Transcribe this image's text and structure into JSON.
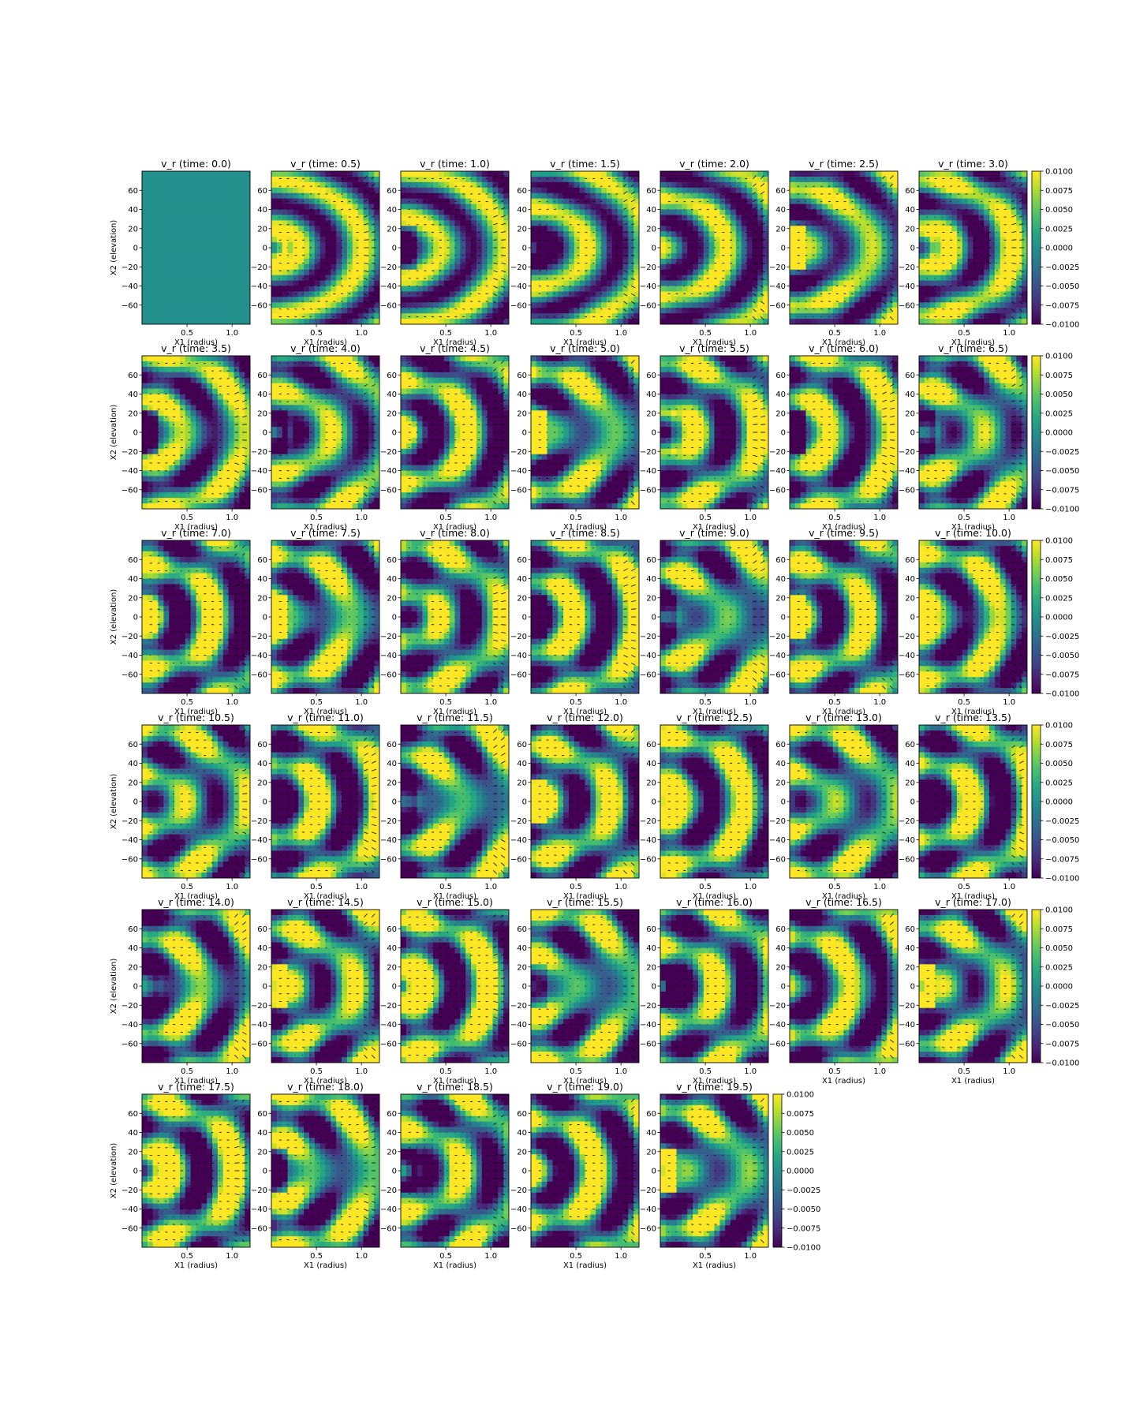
{
  "figure": {
    "colormap": "viridis",
    "colors": {
      "viridis_low": "#440154",
      "viridis_mid": "#21918c",
      "viridis_high": "#fde725",
      "quiver": "#000000"
    }
  },
  "chart_data": {
    "type": "heatmap",
    "variable": "v_r",
    "title_template": "v_r (time: {t})",
    "times": [
      "0.0",
      "0.5",
      "1.0",
      "1.5",
      "2.0",
      "2.5",
      "3.0",
      "3.5",
      "4.0",
      "4.5",
      "5.0",
      "5.5",
      "6.0",
      "6.5",
      "7.0",
      "7.5",
      "8.0",
      "8.5",
      "9.0",
      "9.5",
      "10.0",
      "10.5",
      "11.0",
      "11.5",
      "12.0",
      "12.5",
      "13.0",
      "13.5",
      "14.0",
      "14.5",
      "15.0",
      "15.5",
      "16.0",
      "16.5",
      "17.0",
      "17.5",
      "18.0",
      "18.5",
      "19.0",
      "19.5"
    ],
    "panels_per_row": 7,
    "xlabel": "X1 (radius)",
    "ylabel": "X2 (elevation)",
    "xlim": [
      0.0,
      1.2
    ],
    "ylim": [
      -80,
      80
    ],
    "xticks": [
      "0.5",
      "1.0"
    ],
    "xtick_values": [
      0.5,
      1.0
    ],
    "yticks": [
      "60",
      "40",
      "20",
      "0",
      "−20",
      "−40",
      "−60"
    ],
    "ytick_values": [
      60,
      40,
      20,
      0,
      -20,
      -40,
      -60
    ],
    "colorbar": {
      "vmin": -0.01,
      "vmax": 0.01,
      "ticks": [
        "0.0100",
        "0.0075",
        "0.0050",
        "0.0025",
        "0.0000",
        "−0.0025",
        "−0.0050",
        "−0.0075",
        "−0.0100"
      ],
      "tick_values": [
        0.01,
        0.0075,
        0.005,
        0.0025,
        0.0,
        -0.0025,
        -0.005,
        -0.0075,
        -0.01
      ]
    },
    "overlay": "quiver",
    "grid": false
  }
}
